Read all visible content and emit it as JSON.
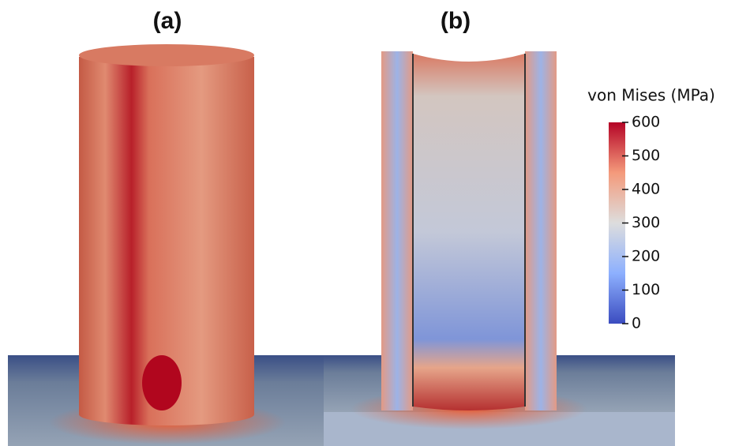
{
  "panels": [
    {
      "label": "(a)"
    },
    {
      "label": "(b)"
    }
  ],
  "colorbar": {
    "title": "von Mises (MPa)",
    "lim": [
      0,
      600
    ],
    "ticks": [
      0,
      100,
      200,
      300,
      400,
      500,
      600
    ]
  }
}
